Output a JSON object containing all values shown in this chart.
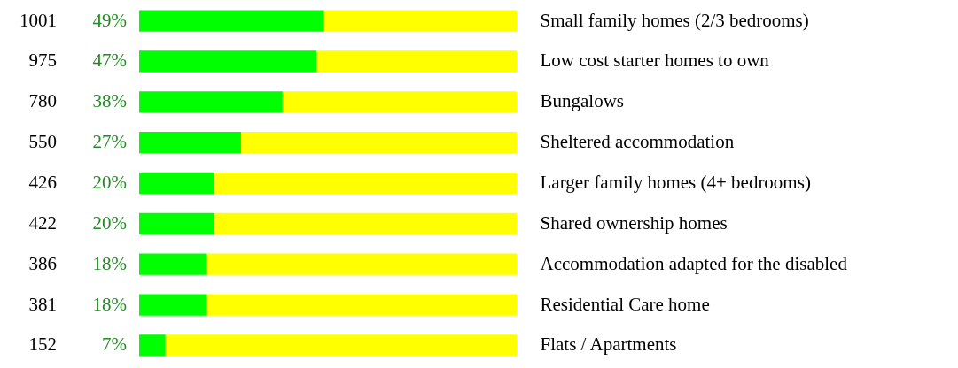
{
  "chart_data": {
    "type": "bar",
    "orientation": "horizontal",
    "stacked": true,
    "categories": [
      "Small family homes (2/3 bedrooms)",
      "Low cost starter homes to own",
      "Bungalows",
      "Sheltered accommodation",
      "Larger family homes (4+ bedrooms)",
      "Shared ownership homes",
      "Accommodation adapted for the disabled",
      "Residential Care home",
      "Flats / Apartments"
    ],
    "series": [
      {
        "color": "#00ff00",
        "values": [
          49,
          47,
          38,
          27,
          20,
          20,
          18,
          18,
          7
        ],
        "value_labels": [
          "49%",
          "47%",
          "38%",
          "27%",
          "20%",
          "20%",
          "18%",
          "18%",
          "7%"
        ]
      },
      {
        "color": "#ffff00",
        "values": [
          51,
          53,
          62,
          73,
          80,
          80,
          82,
          82,
          93
        ]
      }
    ],
    "xlim": [
      0,
      100
    ],
    "annotations": [
      "1001",
      "975",
      "780",
      "550",
      "426",
      "422",
      "386",
      "381",
      "152"
    ]
  }
}
